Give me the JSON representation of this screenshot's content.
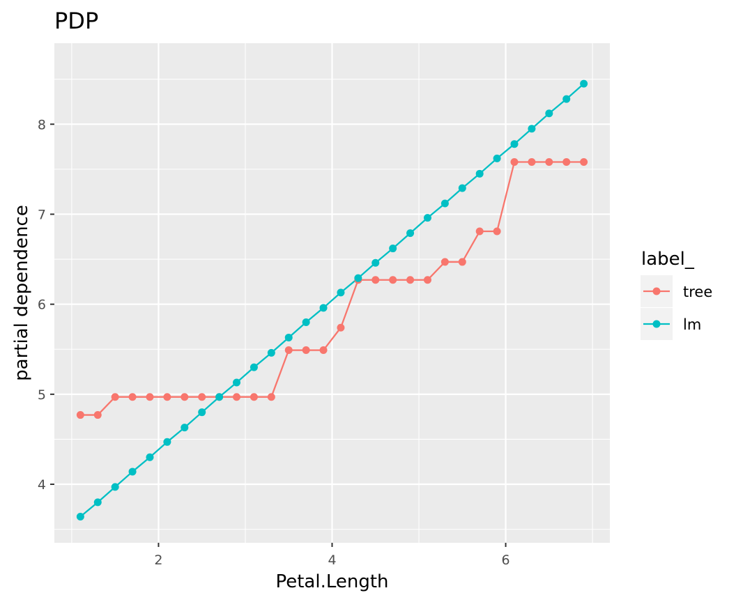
{
  "chart_data": {
    "type": "line",
    "title": "PDP",
    "xlabel": "Petal.Length",
    "ylabel": "partial dependence",
    "xlim": [
      0.8,
      7.2
    ],
    "ylim": [
      3.35,
      8.9
    ],
    "x_ticks": [
      2,
      4,
      6
    ],
    "y_ticks": [
      4,
      5,
      6,
      7,
      8
    ],
    "x_tick_labels": [
      "2",
      "4",
      "6"
    ],
    "y_tick_labels": [
      "4",
      "5",
      "6",
      "7",
      "8"
    ],
    "grid": true,
    "markers": true,
    "legend": {
      "title": "label_",
      "position": "right"
    },
    "x": [
      1.1,
      1.3,
      1.5,
      1.7,
      1.9,
      2.1,
      2.3,
      2.5,
      2.7,
      2.9,
      3.1,
      3.3,
      3.5,
      3.7,
      3.9,
      4.1,
      4.3,
      4.5,
      4.7,
      4.9,
      5.1,
      5.3,
      5.5,
      5.7,
      5.9,
      6.1,
      6.3,
      6.5,
      6.7,
      6.9
    ],
    "series": [
      {
        "name": "tree",
        "color": "#F8766D",
        "values": [
          4.77,
          4.77,
          4.97,
          4.97,
          4.97,
          4.97,
          4.97,
          4.97,
          4.97,
          4.97,
          4.97,
          4.97,
          5.49,
          5.49,
          5.49,
          5.74,
          6.27,
          6.27,
          6.27,
          6.27,
          6.27,
          6.47,
          6.47,
          6.81,
          6.81,
          7.58,
          7.58,
          7.58,
          7.58,
          7.58
        ]
      },
      {
        "name": "lm",
        "color": "#00BFC4",
        "values": [
          3.64,
          3.8,
          3.97,
          4.14,
          4.3,
          4.47,
          4.63,
          4.8,
          4.97,
          5.13,
          5.3,
          5.46,
          5.63,
          5.8,
          5.96,
          6.13,
          6.29,
          6.46,
          6.62,
          6.79,
          6.96,
          7.12,
          7.29,
          7.45,
          7.62,
          7.78,
          7.95,
          8.12,
          8.28,
          8.45
        ]
      }
    ]
  }
}
